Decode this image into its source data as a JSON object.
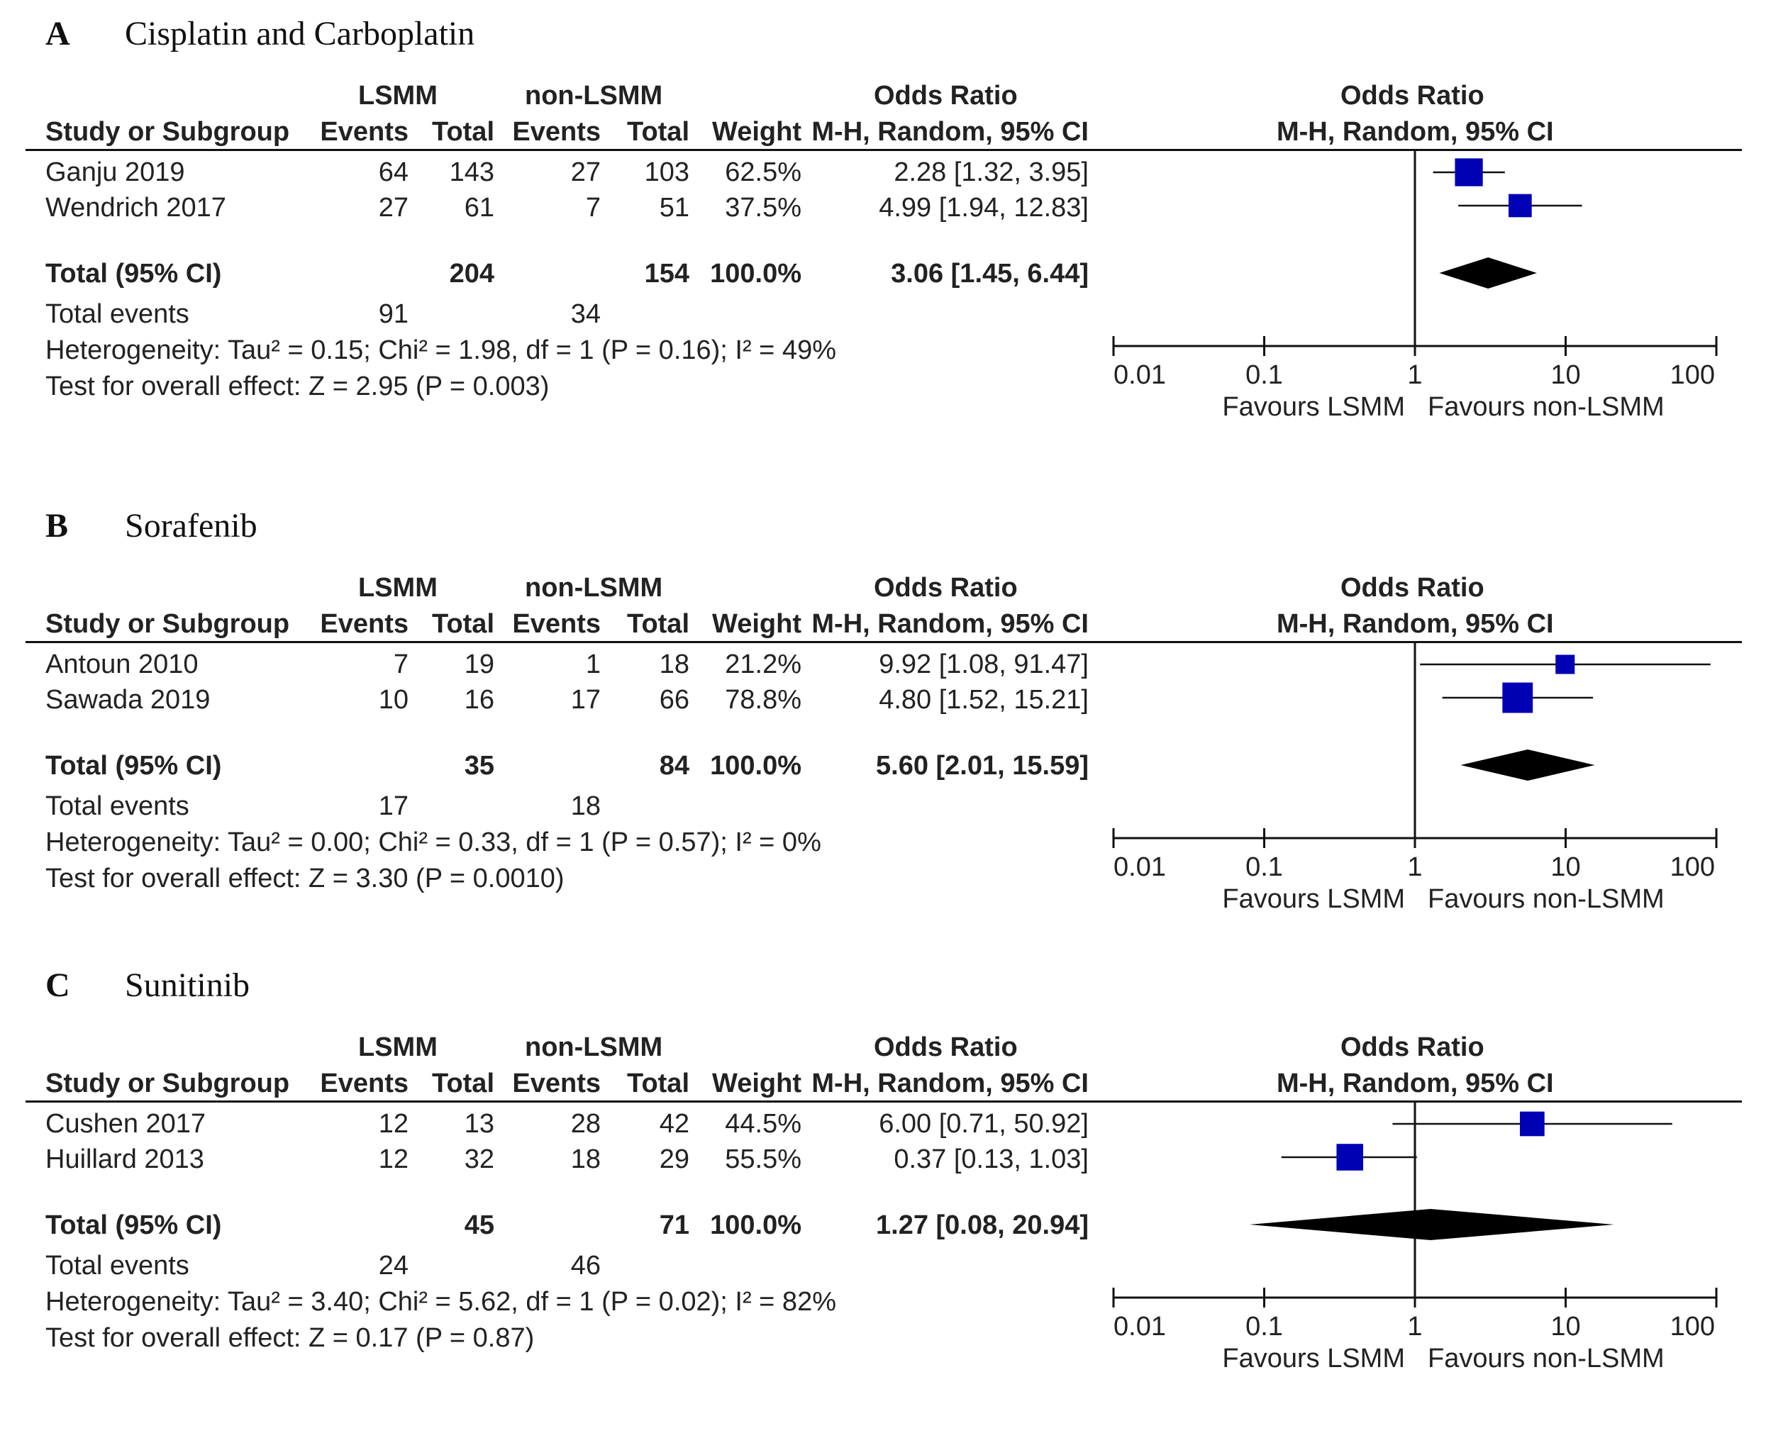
{
  "columns": {
    "study": "Study or Subgroup",
    "group1": "LSMM",
    "group2": "non-LSMM",
    "events": "Events",
    "total": "Total",
    "weight": "Weight",
    "or_title": "Odds Ratio",
    "or_method": "M-H, Random, 95% CI"
  },
  "axis": {
    "ticks": [
      "0.01",
      "0.1",
      "1",
      "10",
      "100"
    ],
    "favours_left": "Favours LSMM",
    "favours_right": "Favours non-LSMM"
  },
  "colors": {
    "marker": "#0000b4",
    "diamond": "#000000",
    "line": "#111111"
  },
  "panels": [
    {
      "letter": "A",
      "title": "Cisplatin and Carboplatin",
      "studies": [
        {
          "name": "Ganju 2019",
          "e1": "64",
          "t1": "143",
          "e2": "27",
          "t2": "103",
          "weight": "62.5%",
          "ci": "2.28 [1.32, 3.95]"
        },
        {
          "name": "Wendrich 2017",
          "e1": "27",
          "t1": "61",
          "e2": "7",
          "t2": "51",
          "weight": "37.5%",
          "ci": "4.99 [1.94, 12.83]"
        }
      ],
      "total": {
        "label": "Total (95% CI)",
        "t1": "204",
        "t2": "154",
        "weight": "100.0%",
        "ci": "3.06 [1.45, 6.44]"
      },
      "events": {
        "label": "Total events",
        "e1": "91",
        "e2": "34"
      },
      "heterogeneity": "Heterogeneity: Tau² = 0.15; Chi² = 1.98, df = 1 (P = 0.16); I² = 49%",
      "overall": "Test for overall effect: Z = 2.95 (P = 0.003)"
    },
    {
      "letter": "B",
      "title": "Sorafenib",
      "studies": [
        {
          "name": "Antoun 2010",
          "e1": "7",
          "t1": "19",
          "e2": "1",
          "t2": "18",
          "weight": "21.2%",
          "ci": "9.92 [1.08, 91.47]"
        },
        {
          "name": "Sawada 2019",
          "e1": "10",
          "t1": "16",
          "e2": "17",
          "t2": "66",
          "weight": "78.8%",
          "ci": "4.80 [1.52, 15.21]"
        }
      ],
      "total": {
        "label": "Total (95% CI)",
        "t1": "35",
        "t2": "84",
        "weight": "100.0%",
        "ci": "5.60 [2.01, 15.59]"
      },
      "events": {
        "label": "Total events",
        "e1": "17",
        "e2": "18"
      },
      "heterogeneity": "Heterogeneity: Tau² = 0.00; Chi² = 0.33, df = 1 (P = 0.57); I² = 0%",
      "overall": "Test for overall effect: Z = 3.30 (P = 0.0010)"
    },
    {
      "letter": "C",
      "title": "Sunitinib",
      "studies": [
        {
          "name": "Cushen 2017",
          "e1": "12",
          "t1": "13",
          "e2": "28",
          "t2": "42",
          "weight": "44.5%",
          "ci": "6.00 [0.71, 50.92]"
        },
        {
          "name": "Huillard 2013",
          "e1": "12",
          "t1": "32",
          "e2": "18",
          "t2": "29",
          "weight": "55.5%",
          "ci": "0.37 [0.13, 1.03]"
        }
      ],
      "total": {
        "label": "Total (95% CI)",
        "t1": "45",
        "t2": "71",
        "weight": "100.0%",
        "ci": "1.27 [0.08, 20.94]"
      },
      "events": {
        "label": "Total events",
        "e1": "24",
        "e2": "46"
      },
      "heterogeneity": "Heterogeneity: Tau² = 3.40; Chi² = 5.62, df = 1 (P = 0.02); I² = 82%",
      "overall": "Test for overall effect: Z = 0.17 (P = 0.87)"
    }
  ],
  "chart_data": [
    {
      "type": "forest",
      "title": "Cisplatin and Carboplatin",
      "xscale": "log",
      "xlim": [
        0.01,
        100
      ],
      "xticks": [
        0.01,
        0.1,
        1,
        10,
        100
      ],
      "xlabel_left": "Favours LSMM",
      "xlabel_right": "Favours non-LSMM",
      "studies": [
        {
          "name": "Ganju 2019",
          "or": 2.28,
          "lo": 1.32,
          "hi": 3.95,
          "weight": 62.5
        },
        {
          "name": "Wendrich 2017",
          "or": 4.99,
          "lo": 1.94,
          "hi": 12.83,
          "weight": 37.5
        }
      ],
      "pooled": {
        "or": 3.06,
        "lo": 1.45,
        "hi": 6.44
      }
    },
    {
      "type": "forest",
      "title": "Sorafenib",
      "xscale": "log",
      "xlim": [
        0.01,
        100
      ],
      "xticks": [
        0.01,
        0.1,
        1,
        10,
        100
      ],
      "xlabel_left": "Favours LSMM",
      "xlabel_right": "Favours non-LSMM",
      "studies": [
        {
          "name": "Antoun 2010",
          "or": 9.92,
          "lo": 1.08,
          "hi": 91.47,
          "weight": 21.2
        },
        {
          "name": "Sawada 2019",
          "or": 4.8,
          "lo": 1.52,
          "hi": 15.21,
          "weight": 78.8
        }
      ],
      "pooled": {
        "or": 5.6,
        "lo": 2.01,
        "hi": 15.59
      }
    },
    {
      "type": "forest",
      "title": "Sunitinib",
      "xscale": "log",
      "xlim": [
        0.01,
        100
      ],
      "xticks": [
        0.01,
        0.1,
        1,
        10,
        100
      ],
      "xlabel_left": "Favours LSMM",
      "xlabel_right": "Favours non-LSMM",
      "studies": [
        {
          "name": "Cushen 2017",
          "or": 6.0,
          "lo": 0.71,
          "hi": 50.92,
          "weight": 44.5
        },
        {
          "name": "Huillard 2013",
          "or": 0.37,
          "lo": 0.13,
          "hi": 1.03,
          "weight": 55.5
        }
      ],
      "pooled": {
        "or": 1.27,
        "lo": 0.08,
        "hi": 20.94
      }
    }
  ]
}
